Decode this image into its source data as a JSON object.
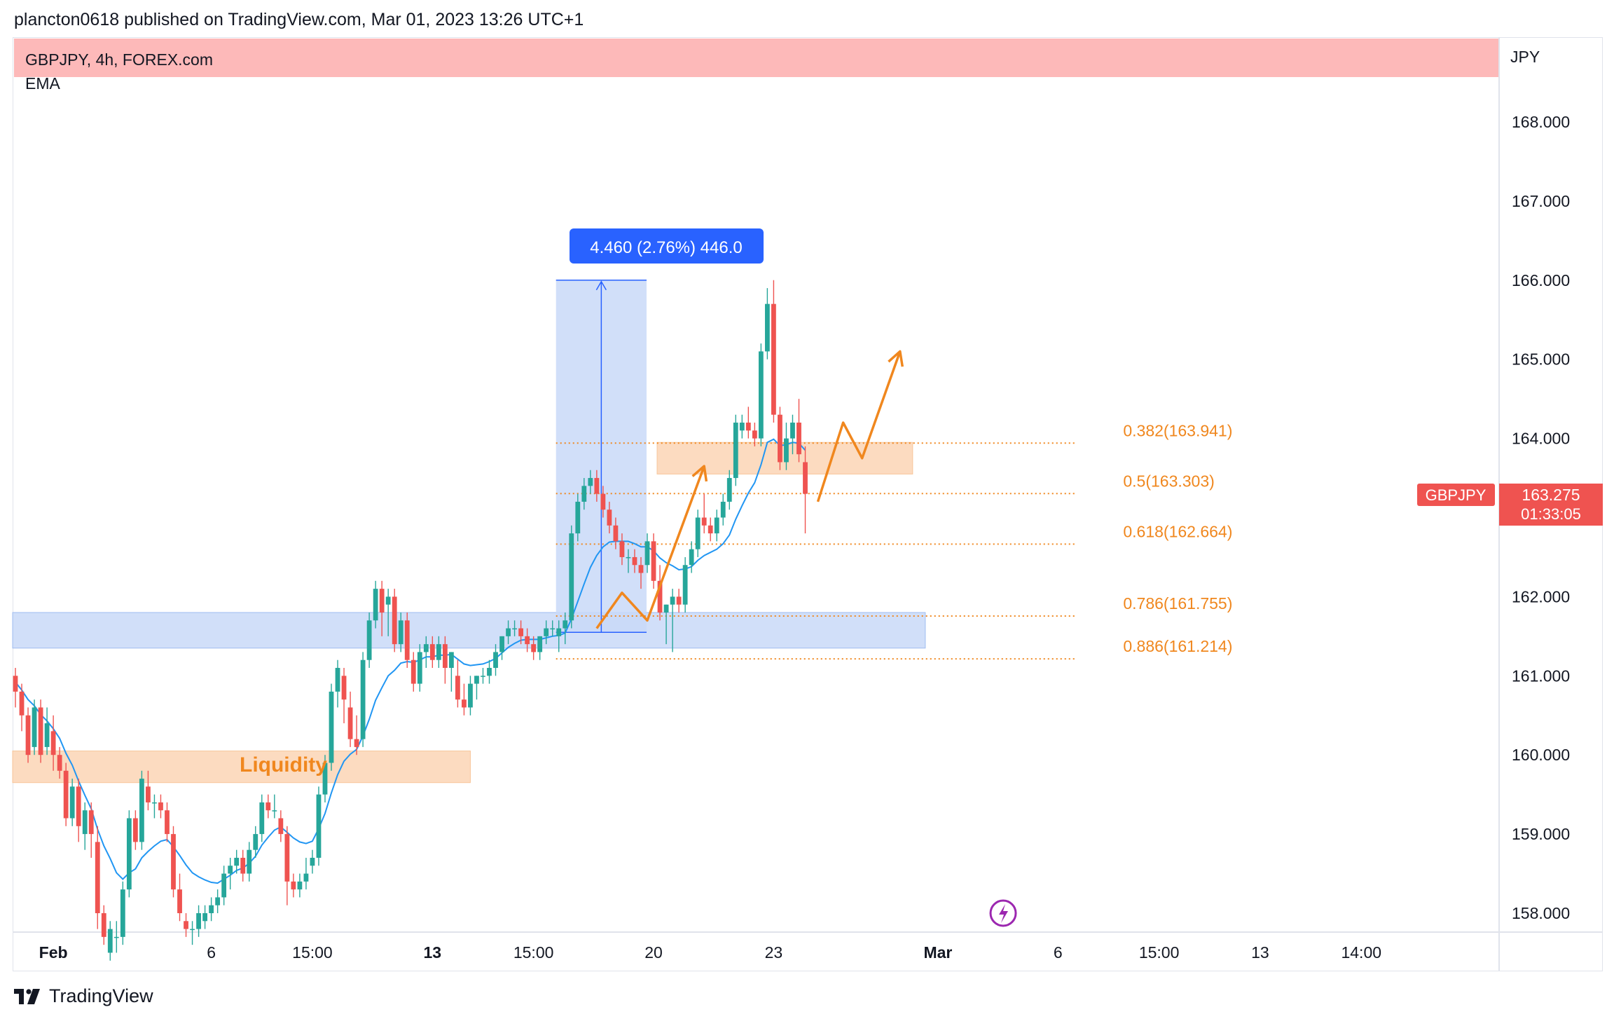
{
  "header": {
    "published_line": "plancton0618 published on TradingView.com, Mar 01, 2023 13:26 UTC+1"
  },
  "chart_info": {
    "symbol_line": "GBPJPY, 4h, FOREX.com",
    "indicator": "EMA",
    "currency": "JPY"
  },
  "price_badge": {
    "symbol": "GBPJPY",
    "price": "163.275",
    "countdown": "01:33:05"
  },
  "measure_label": "4.460 (2.76%) 446.0",
  "liquidity_label": "Liquidity",
  "footer": {
    "brand": "TradingView"
  },
  "colors": {
    "up": "#26a69a",
    "down": "#ef5350",
    "ema": "#2196f3",
    "fib": "#f0871e",
    "zone_orange": "#fbd5b5",
    "zone_blue": "#c9d9f8",
    "top_band": "#fdb9b9",
    "measure_tag": "#2962ff"
  },
  "chart_data": {
    "type": "candlestick",
    "symbol": "GBPJPY",
    "timeframe": "4h",
    "ylim": [
      157.7,
      169.1
    ],
    "y_ticks": [
      "168.000",
      "167.000",
      "166.000",
      "165.000",
      "164.000",
      "163.000",
      "162.000",
      "161.000",
      "160.000",
      "159.000",
      "158.000"
    ],
    "x_ticks": [
      {
        "label": "Feb",
        "bold": true,
        "bar": 6
      },
      {
        "label": "6",
        "bold": false,
        "bar": 31
      },
      {
        "label": "15:00",
        "bold": false,
        "bar": 47
      },
      {
        "label": "13",
        "bold": true,
        "bar": 66
      },
      {
        "label": "15:00",
        "bold": false,
        "bar": 82
      },
      {
        "label": "20",
        "bold": false,
        "bar": 101
      },
      {
        "label": "23",
        "bold": false,
        "bar": 120
      },
      {
        "label": "Mar",
        "bold": true,
        "bar": 146
      },
      {
        "label": "6",
        "bold": false,
        "bar": 165
      },
      {
        "label": "15:00",
        "bold": false,
        "bar": 181
      },
      {
        "label": "13",
        "bold": false,
        "bar": 197
      },
      {
        "label": "14:00",
        "bold": false,
        "bar": 213
      }
    ],
    "candles": [
      [
        161.0,
        161.1,
        160.6,
        160.8
      ],
      [
        160.8,
        160.9,
        160.3,
        160.5
      ],
      [
        160.5,
        160.6,
        159.9,
        160.0
      ],
      [
        160.1,
        160.7,
        160.0,
        160.6
      ],
      [
        160.6,
        160.7,
        159.9,
        160.0
      ],
      [
        160.1,
        160.6,
        160.0,
        160.4
      ],
      [
        160.3,
        160.5,
        159.8,
        160.0
      ],
      [
        160.0,
        160.1,
        159.7,
        159.8
      ],
      [
        159.8,
        159.9,
        159.1,
        159.2
      ],
      [
        159.2,
        159.7,
        159.1,
        159.6
      ],
      [
        159.6,
        159.7,
        158.9,
        159.1
      ],
      [
        159.0,
        159.4,
        158.8,
        159.3
      ],
      [
        159.3,
        159.4,
        158.7,
        159.0
      ],
      [
        158.9,
        159.1,
        157.8,
        158.0
      ],
      [
        158.0,
        158.1,
        157.6,
        157.7
      ],
      [
        157.5,
        157.9,
        157.4,
        157.8
      ],
      [
        157.7,
        157.9,
        157.5,
        157.7
      ],
      [
        157.7,
        158.4,
        157.6,
        158.3
      ],
      [
        158.3,
        159.3,
        158.2,
        159.2
      ],
      [
        159.2,
        159.3,
        158.8,
        158.9
      ],
      [
        158.9,
        159.8,
        158.8,
        159.7
      ],
      [
        159.6,
        159.8,
        159.3,
        159.4
      ],
      [
        159.4,
        159.5,
        159.2,
        159.4
      ],
      [
        159.4,
        159.5,
        159.2,
        159.3
      ],
      [
        159.3,
        159.4,
        158.9,
        159.0
      ],
      [
        159.0,
        159.1,
        158.2,
        158.3
      ],
      [
        158.3,
        158.5,
        157.9,
        158.0
      ],
      [
        157.9,
        158.0,
        157.7,
        157.8
      ],
      [
        157.8,
        157.9,
        157.6,
        157.8
      ],
      [
        157.8,
        158.1,
        157.7,
        158.0
      ],
      [
        157.9,
        158.1,
        157.8,
        158.0
      ],
      [
        158.0,
        158.2,
        157.9,
        158.1
      ],
      [
        158.1,
        158.3,
        158.0,
        158.2
      ],
      [
        158.2,
        158.6,
        158.1,
        158.5
      ],
      [
        158.5,
        158.7,
        158.3,
        158.6
      ],
      [
        158.6,
        158.8,
        158.5,
        158.7
      ],
      [
        158.7,
        158.8,
        158.4,
        158.5
      ],
      [
        158.5,
        158.9,
        158.4,
        158.8
      ],
      [
        158.8,
        159.1,
        158.7,
        159.0
      ],
      [
        159.0,
        159.5,
        158.9,
        159.4
      ],
      [
        159.4,
        159.5,
        159.2,
        159.3
      ],
      [
        159.3,
        159.5,
        159.2,
        159.3
      ],
      [
        159.2,
        159.3,
        158.9,
        159.0
      ],
      [
        159.0,
        159.1,
        158.1,
        158.4
      ],
      [
        158.4,
        158.5,
        158.2,
        158.3
      ],
      [
        158.3,
        158.5,
        158.2,
        158.4
      ],
      [
        158.4,
        158.7,
        158.3,
        158.5
      ],
      [
        158.6,
        158.8,
        158.5,
        158.7
      ],
      [
        158.7,
        159.6,
        158.6,
        159.5
      ],
      [
        159.5,
        160.0,
        159.4,
        159.9
      ],
      [
        159.9,
        160.9,
        159.8,
        160.8
      ],
      [
        160.8,
        161.2,
        160.6,
        161.1
      ],
      [
        161.0,
        161.1,
        160.4,
        160.7
      ],
      [
        160.6,
        160.8,
        160.1,
        160.2
      ],
      [
        160.2,
        160.5,
        160.0,
        160.1
      ],
      [
        160.2,
        161.3,
        160.1,
        161.2
      ],
      [
        161.2,
        161.8,
        161.1,
        161.7
      ],
      [
        161.7,
        162.2,
        161.6,
        162.1
      ],
      [
        162.1,
        162.2,
        161.5,
        161.8
      ],
      [
        161.9,
        162.1,
        161.5,
        162.0
      ],
      [
        162.0,
        162.1,
        161.3,
        161.4
      ],
      [
        161.4,
        161.8,
        161.3,
        161.7
      ],
      [
        161.7,
        161.8,
        161.1,
        161.2
      ],
      [
        161.2,
        161.3,
        160.8,
        160.9
      ],
      [
        160.9,
        161.4,
        160.8,
        161.3
      ],
      [
        161.3,
        161.5,
        161.1,
        161.4
      ],
      [
        161.4,
        161.5,
        161.1,
        161.2
      ],
      [
        161.2,
        161.5,
        161.1,
        161.4
      ],
      [
        161.4,
        161.5,
        160.9,
        161.1
      ],
      [
        161.1,
        161.3,
        160.8,
        161.3
      ],
      [
        161.0,
        161.2,
        160.6,
        160.7
      ],
      [
        160.7,
        160.9,
        160.5,
        160.6
      ],
      [
        160.6,
        161.0,
        160.5,
        160.9
      ],
      [
        160.9,
        161.0,
        160.7,
        161.0
      ],
      [
        161.0,
        161.1,
        160.9,
        161.0
      ],
      [
        161.0,
        161.2,
        160.9,
        161.1
      ],
      [
        161.1,
        161.4,
        161.0,
        161.3
      ],
      [
        161.3,
        161.5,
        161.2,
        161.5
      ],
      [
        161.5,
        161.7,
        161.4,
        161.6
      ],
      [
        161.6,
        161.7,
        161.5,
        161.6
      ],
      [
        161.6,
        161.7,
        161.4,
        161.5
      ],
      [
        161.5,
        161.6,
        161.3,
        161.4
      ],
      [
        161.4,
        161.5,
        161.2,
        161.3
      ],
      [
        161.3,
        161.5,
        161.2,
        161.5
      ],
      [
        161.5,
        161.7,
        161.4,
        161.6
      ],
      [
        161.6,
        161.7,
        161.5,
        161.6
      ],
      [
        161.5,
        161.7,
        161.3,
        161.6
      ],
      [
        161.6,
        161.8,
        161.4,
        161.7
      ],
      [
        161.7,
        162.9,
        161.6,
        162.8
      ],
      [
        162.8,
        163.3,
        162.7,
        163.2
      ],
      [
        163.2,
        163.5,
        163.1,
        163.4
      ],
      [
        163.4,
        163.6,
        163.3,
        163.5
      ],
      [
        163.5,
        163.6,
        163.2,
        163.3
      ],
      [
        163.3,
        163.4,
        163.0,
        163.1
      ],
      [
        163.1,
        163.2,
        162.8,
        162.9
      ],
      [
        162.9,
        163.0,
        162.6,
        162.7
      ],
      [
        162.7,
        162.8,
        162.4,
        162.5
      ],
      [
        162.5,
        162.6,
        162.3,
        162.5
      ],
      [
        162.5,
        162.6,
        162.3,
        162.4
      ],
      [
        162.4,
        162.5,
        162.1,
        162.3
      ],
      [
        162.4,
        162.8,
        162.3,
        162.7
      ],
      [
        162.7,
        162.8,
        162.1,
        162.2
      ],
      [
        162.2,
        162.4,
        161.7,
        161.8
      ],
      [
        161.8,
        161.9,
        161.4,
        161.9
      ],
      [
        161.9,
        162.1,
        161.3,
        162.0
      ],
      [
        162.0,
        162.1,
        161.8,
        161.9
      ],
      [
        161.9,
        162.5,
        161.8,
        162.4
      ],
      [
        162.4,
        162.7,
        162.3,
        162.6
      ],
      [
        162.6,
        163.1,
        162.5,
        163.0
      ],
      [
        163.0,
        163.3,
        162.8,
        162.9
      ],
      [
        162.9,
        163.0,
        162.7,
        162.8
      ],
      [
        162.8,
        163.1,
        162.7,
        163.0
      ],
      [
        163.0,
        163.3,
        162.9,
        163.2
      ],
      [
        163.2,
        163.6,
        163.1,
        163.5
      ],
      [
        163.5,
        164.3,
        163.4,
        164.2
      ],
      [
        164.1,
        164.3,
        164.0,
        164.2
      ],
      [
        164.2,
        164.4,
        164.0,
        164.1
      ],
      [
        164.1,
        164.2,
        163.9,
        164.0
      ],
      [
        164.0,
        165.2,
        163.9,
        165.1
      ],
      [
        165.1,
        165.9,
        165.0,
        165.7
      ],
      [
        165.7,
        166.0,
        164.2,
        164.3
      ],
      [
        164.3,
        164.4,
        163.6,
        163.7
      ],
      [
        163.7,
        164.2,
        163.6,
        164.0
      ],
      [
        164.0,
        164.3,
        163.8,
        164.2
      ],
      [
        164.2,
        164.5,
        163.7,
        163.8
      ],
      [
        163.7,
        163.9,
        162.8,
        163.3
      ]
    ],
    "ema_line": [
      160.92,
      160.82,
      160.7,
      160.62,
      160.51,
      160.43,
      160.33,
      160.21,
      160.02,
      159.87,
      159.67,
      159.49,
      159.32,
      159.06,
      158.85,
      158.69,
      158.51,
      158.43,
      158.51,
      158.56,
      158.7,
      158.78,
      158.85,
      158.91,
      158.93,
      158.84,
      158.73,
      158.61,
      158.51,
      158.46,
      158.42,
      158.39,
      158.38,
      158.43,
      158.48,
      158.54,
      158.57,
      158.63,
      158.72,
      158.86,
      158.96,
      159.05,
      159.09,
      159.02,
      158.95,
      158.9,
      158.88,
      158.91,
      159.07,
      159.26,
      159.52,
      159.75,
      159.92,
      160.01,
      160.07,
      160.24,
      160.45,
      160.69,
      160.85,
      161.0,
      161.07,
      161.16,
      161.18,
      161.17,
      161.2,
      161.24,
      161.24,
      161.26,
      161.26,
      161.27,
      161.21,
      161.15,
      161.13,
      161.14,
      161.15,
      161.18,
      161.22,
      161.29,
      161.36,
      161.41,
      161.45,
      161.46,
      161.46,
      161.46,
      161.48,
      161.5,
      161.51,
      161.54,
      161.72,
      161.94,
      162.16,
      162.37,
      162.52,
      162.63,
      162.69,
      162.7,
      162.7,
      162.7,
      162.67,
      162.63,
      162.63,
      162.58,
      162.49,
      162.43,
      162.39,
      162.34,
      162.35,
      162.38,
      162.46,
      162.52,
      162.56,
      162.6,
      162.67,
      162.78,
      162.98,
      163.15,
      163.31,
      163.44,
      163.67,
      163.95,
      163.99,
      163.91,
      163.92,
      163.95,
      163.94,
      163.85
    ],
    "fib_levels": [
      {
        "label": "0.382(163.941)",
        "price": 163.941
      },
      {
        "label": "0.5(163.303)",
        "price": 163.303
      },
      {
        "label": "0.618(162.664)",
        "price": 162.664
      },
      {
        "label": "0.786(161.755)",
        "price": 161.755
      },
      {
        "label": "0.886(161.214)",
        "price": 161.214
      }
    ],
    "fib_bars": [
      86,
      168
    ],
    "zones": [
      {
        "name": "liquidity-zone",
        "color": "orange",
        "bars": [
          0,
          72
        ],
        "prices": [
          159.65,
          160.05
        ]
      },
      {
        "name": "demand-zone",
        "color": "blue",
        "bars": [
          0,
          144
        ],
        "prices": [
          161.35,
          161.8
        ]
      },
      {
        "name": "supply-zone",
        "color": "orange",
        "bars": [
          102,
          142
        ],
        "prices": [
          163.55,
          163.95
        ]
      }
    ],
    "measure": {
      "bars": [
        86,
        99
      ],
      "prices": [
        161.55,
        166.0
      ]
    },
    "projection_paths": [
      [
        [
          92,
          161.6
        ],
        [
          96,
          162.05
        ],
        [
          100,
          161.7
        ],
        [
          109,
          163.65
        ]
      ],
      [
        [
          127,
          163.2
        ],
        [
          131,
          164.2
        ],
        [
          134,
          163.75
        ],
        [
          140,
          165.1
        ]
      ]
    ],
    "last_price": 163.275
  }
}
